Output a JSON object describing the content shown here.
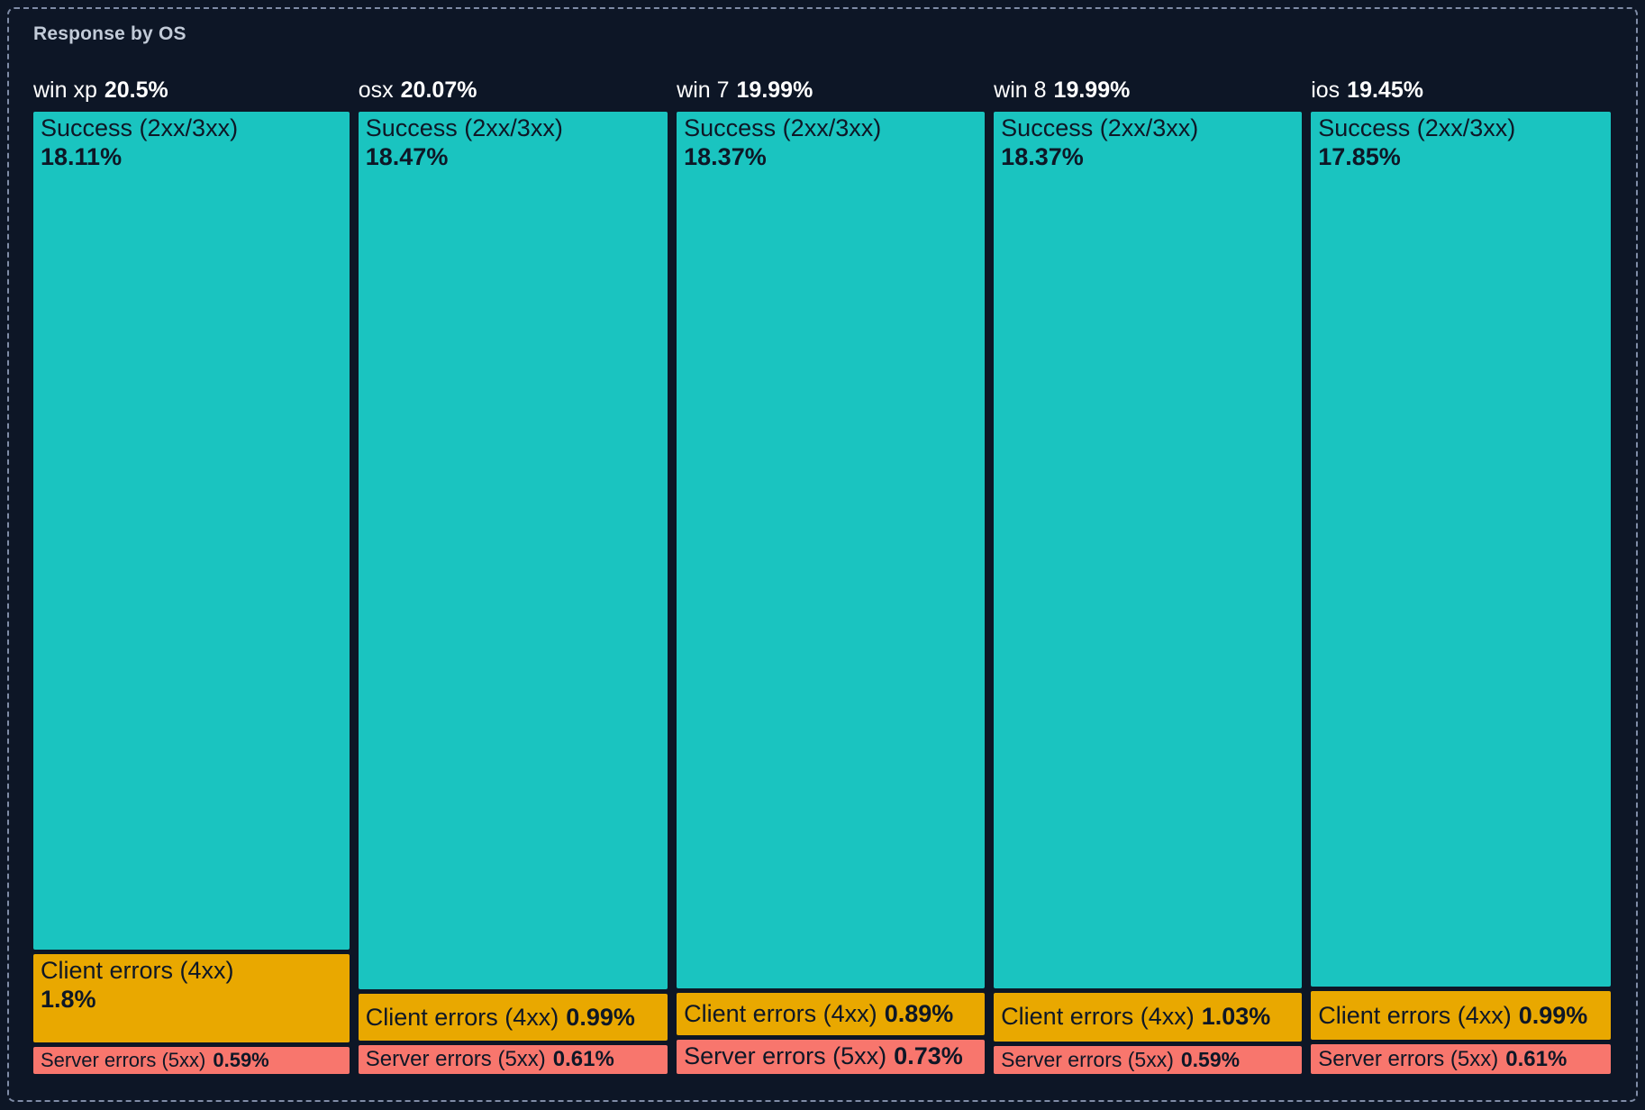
{
  "panel": {
    "title": "Response by OS"
  },
  "colors": {
    "background": "#0D1626",
    "panel_border": "#7F8CA6",
    "title_text": "#C2CBD8",
    "header_text": "#FFFFFF",
    "segment_text": "#0E1726",
    "success": "#1AC4C0",
    "client_errors": "#E9A800",
    "server_errors": "#F8766D"
  },
  "chart_data": {
    "type": "treemap",
    "title": "Response by OS",
    "orientation": "vertical-columns",
    "unit": "%",
    "legend": "none",
    "columns": [
      {
        "name": "win xp",
        "total": 20.5,
        "total_label": "20.5%",
        "segments": [
          {
            "label": "Success (2xx/3xx)",
            "value": 18.11,
            "value_label": "18.11%",
            "color": "success"
          },
          {
            "label": "Client errors (4xx)",
            "value": 1.8,
            "value_label": "1.8%",
            "color": "client_errors"
          },
          {
            "label": "Server errors (5xx)",
            "value": 0.59,
            "value_label": "0.59%",
            "color": "server_errors"
          }
        ]
      },
      {
        "name": "osx",
        "total": 20.07,
        "total_label": "20.07%",
        "segments": [
          {
            "label": "Success (2xx/3xx)",
            "value": 18.47,
            "value_label": "18.47%",
            "color": "success"
          },
          {
            "label": "Client errors (4xx)",
            "value": 0.99,
            "value_label": "0.99%",
            "color": "client_errors"
          },
          {
            "label": "Server errors (5xx)",
            "value": 0.61,
            "value_label": "0.61%",
            "color": "server_errors"
          }
        ]
      },
      {
        "name": "win 7",
        "total": 19.99,
        "total_label": "19.99%",
        "segments": [
          {
            "label": "Success (2xx/3xx)",
            "value": 18.37,
            "value_label": "18.37%",
            "color": "success"
          },
          {
            "label": "Client errors (4xx)",
            "value": 0.89,
            "value_label": "0.89%",
            "color": "client_errors"
          },
          {
            "label": "Server errors (5xx)",
            "value": 0.73,
            "value_label": "0.73%",
            "color": "server_errors"
          }
        ]
      },
      {
        "name": "win 8",
        "total": 19.99,
        "total_label": "19.99%",
        "segments": [
          {
            "label": "Success (2xx/3xx)",
            "value": 18.37,
            "value_label": "18.37%",
            "color": "success"
          },
          {
            "label": "Client errors (4xx)",
            "value": 1.03,
            "value_label": "1.03%",
            "color": "client_errors"
          },
          {
            "label": "Server errors (5xx)",
            "value": 0.59,
            "value_label": "0.59%",
            "color": "server_errors"
          }
        ]
      },
      {
        "name": "ios",
        "total": 19.45,
        "total_label": "19.45%",
        "segments": [
          {
            "label": "Success (2xx/3xx)",
            "value": 17.85,
            "value_label": "17.85%",
            "color": "success"
          },
          {
            "label": "Client errors (4xx)",
            "value": 0.99,
            "value_label": "0.99%",
            "color": "client_errors"
          },
          {
            "label": "Server errors (5xx)",
            "value": 0.61,
            "value_label": "0.61%",
            "color": "server_errors"
          }
        ]
      }
    ]
  }
}
